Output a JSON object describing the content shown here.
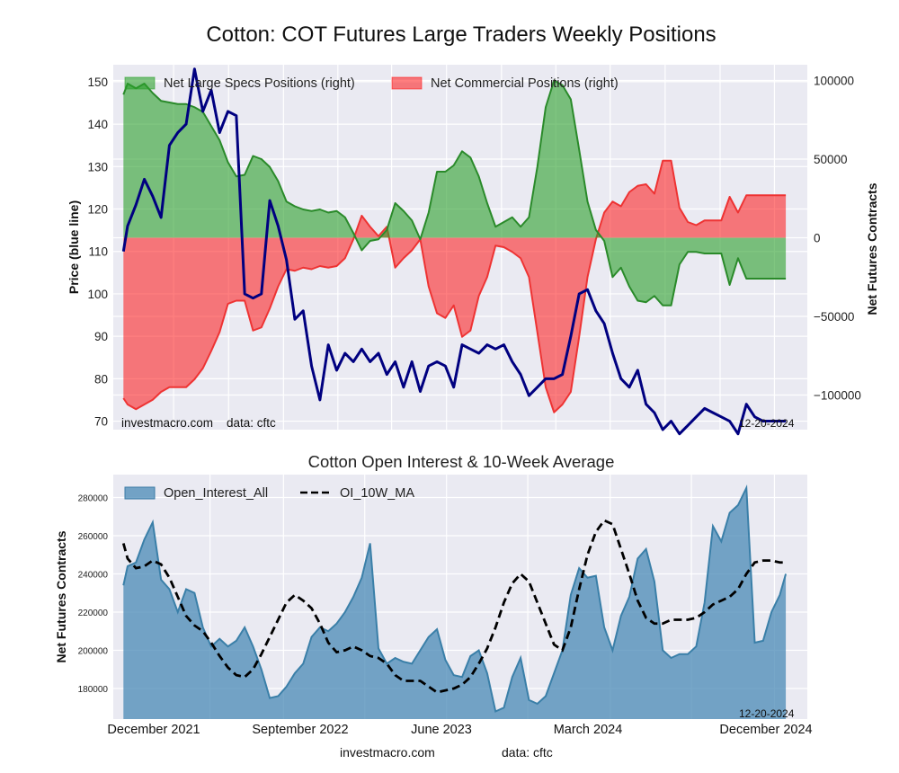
{
  "figure": {
    "title": "Cotton: COT Futures Large Traders Weekly Positions",
    "footer_left": "investmacro.com",
    "footer_right": "data: cftc"
  },
  "chart_data": [
    {
      "type": "area",
      "id": "positions",
      "title": "Cotton: COT Futures Large Traders Weekly Positions",
      "ylabel": "Price (blue line)",
      "ylabel_right": "Net Futures Contracts",
      "ylim": [
        68,
        154
      ],
      "ylim_right": [
        -122000,
        110000
      ],
      "yticks": [
        70,
        80,
        90,
        100,
        110,
        120,
        130,
        140,
        150
      ],
      "yticks_right": [
        -100000,
        -50000,
        0,
        50000,
        100000
      ],
      "yticks_right_labels": [
        "−100000",
        "−50000",
        "0",
        "50000",
        "100000"
      ],
      "grid": true,
      "legend_position": "top-left",
      "watermark": "investmacro.com",
      "source_note": "data: cftc",
      "date_label": "12-20-2024",
      "x_range": [
        "2021-11-20",
        "2025-01-25"
      ],
      "x": [
        "2021-12-07",
        "2021-12-14",
        "2021-12-28",
        "2022-01-11",
        "2022-01-25",
        "2022-02-08",
        "2022-02-22",
        "2022-03-08",
        "2022-03-22",
        "2022-04-05",
        "2022-04-19",
        "2022-05-03",
        "2022-05-17",
        "2022-05-31",
        "2022-06-14",
        "2022-06-28",
        "2022-07-12",
        "2022-07-26",
        "2022-08-09",
        "2022-08-23",
        "2022-09-06",
        "2022-09-20",
        "2022-10-04",
        "2022-10-18",
        "2022-11-01",
        "2022-11-15",
        "2022-11-29",
        "2022-12-13",
        "2022-12-27",
        "2023-01-10",
        "2023-01-24",
        "2023-02-07",
        "2023-02-21",
        "2023-03-07",
        "2023-03-21",
        "2023-04-04",
        "2023-04-18",
        "2023-05-02",
        "2023-05-16",
        "2023-05-30",
        "2023-06-13",
        "2023-06-27",
        "2023-07-11",
        "2023-07-25",
        "2023-08-08",
        "2023-08-22",
        "2023-09-05",
        "2023-09-19",
        "2023-10-03",
        "2023-10-17",
        "2023-10-31",
        "2023-11-14",
        "2023-11-28",
        "2023-12-12",
        "2023-12-26",
        "2024-01-09",
        "2024-01-23",
        "2024-02-06",
        "2024-02-20",
        "2024-03-05",
        "2024-03-19",
        "2024-04-02",
        "2024-04-16",
        "2024-04-30",
        "2024-05-14",
        "2024-05-28",
        "2024-06-11",
        "2024-06-25",
        "2024-07-09",
        "2024-07-23",
        "2024-08-06",
        "2024-08-20",
        "2024-09-03",
        "2024-09-17",
        "2024-10-01",
        "2024-10-15",
        "2024-10-29",
        "2024-11-12",
        "2024-11-26",
        "2024-12-10",
        "2024-12-20"
      ],
      "series": [
        {
          "name": "Net Large Specs Positions (right)",
          "kind": "area",
          "axis": "right",
          "color": "#2ca02c",
          "values": [
            91000,
            98000,
            95000,
            98000,
            92000,
            87000,
            86000,
            85000,
            85000,
            83000,
            80000,
            71000,
            62000,
            48000,
            39000,
            40000,
            52000,
            50000,
            45000,
            36000,
            23000,
            20000,
            18000,
            17000,
            18000,
            16000,
            17000,
            13000,
            3000,
            -8000,
            -2000,
            -1000,
            5000,
            22000,
            17000,
            11000,
            -1000,
            16000,
            42000,
            42000,
            46000,
            55000,
            51000,
            39000,
            22000,
            7000,
            10000,
            13000,
            7000,
            13000,
            45000,
            83000,
            100000,
            97000,
            88000,
            56000,
            23000,
            5000,
            -2000,
            -25000,
            -19000,
            -31000,
            -40000,
            -41000,
            -37000,
            -43000,
            -43000,
            -17000,
            -9000,
            -9000,
            -10000,
            -10000,
            -10000,
            -30000,
            -13000,
            -26000,
            -26000,
            -26000,
            -26000,
            -26000,
            -26000
          ]
        },
        {
          "name": "Net Commercial Positions (right)",
          "kind": "area",
          "axis": "right",
          "color": "#ff0000",
          "values": [
            -102000,
            -106000,
            -109000,
            -106000,
            -103000,
            -98000,
            -95000,
            -95000,
            -95000,
            -90000,
            -83000,
            -72000,
            -60000,
            -42000,
            -40000,
            -40000,
            -59000,
            -57000,
            -45000,
            -31000,
            -20000,
            -21000,
            -19000,
            -20000,
            -18000,
            -19000,
            -18000,
            -13000,
            -1000,
            14000,
            7000,
            1000,
            7000,
            -19000,
            -13000,
            -8000,
            -1000,
            -31000,
            -48000,
            -51000,
            -43000,
            -63000,
            -59000,
            -37000,
            -25000,
            -5000,
            -6000,
            -9000,
            -13000,
            -25000,
            -60000,
            -95000,
            -111000,
            -106000,
            -98000,
            -63000,
            -25000,
            -1000,
            16000,
            23000,
            20000,
            29000,
            33000,
            34000,
            28000,
            49000,
            49000,
            19000,
            10000,
            8000,
            11000,
            11000,
            11000,
            26000,
            16000,
            27000,
            27000,
            27000,
            27000,
            27000,
            27000
          ]
        },
        {
          "name": "Price",
          "kind": "line",
          "axis": "left",
          "color": "#000080",
          "values": [
            110,
            116,
            121,
            127,
            123,
            118,
            135,
            138,
            140,
            153,
            143,
            148,
            138,
            143,
            142,
            100,
            99,
            100,
            122,
            116,
            108,
            94,
            96,
            83,
            75,
            88,
            82,
            86,
            84,
            87,
            84,
            86,
            81,
            84,
            78,
            84,
            77,
            83,
            84,
            83,
            78,
            88,
            87,
            86,
            88,
            87,
            88,
            84,
            81,
            76,
            78,
            80,
            80,
            81,
            90,
            100,
            101,
            96,
            93,
            86,
            80,
            78,
            82,
            74,
            72,
            68,
            70,
            67,
            69,
            71,
            73,
            72,
            71,
            70,
            67,
            74,
            71,
            70,
            70,
            70,
            70
          ]
        }
      ]
    },
    {
      "type": "area",
      "id": "open-interest",
      "title": "Cotton Open Interest & 10-Week Average",
      "ylabel": "Net Futures Contracts",
      "ylim": [
        164000,
        292000
      ],
      "yticks": [
        180000,
        200000,
        220000,
        240000,
        260000,
        280000
      ],
      "xticks": [
        "December 2021",
        "September 2022",
        "June 2023",
        "March 2024",
        "December 2024"
      ],
      "grid": true,
      "legend_position": "top-left",
      "date_label": "12-20-2024",
      "series": [
        {
          "name": "Open_Interest_All",
          "kind": "area",
          "color": "#4a8ab5",
          "values": [
            234000,
            244000,
            246000,
            258000,
            267000,
            237000,
            232000,
            220000,
            232000,
            230000,
            212000,
            202000,
            206000,
            202000,
            205000,
            212000,
            202000,
            190000,
            175000,
            176000,
            181000,
            188000,
            193000,
            207000,
            212000,
            210000,
            214000,
            220000,
            228000,
            238000,
            256000,
            201000,
            193000,
            196000,
            194000,
            193000,
            200000,
            207000,
            211000,
            195000,
            187000,
            186000,
            197000,
            200000,
            188000,
            168000,
            170000,
            186000,
            196000,
            174000,
            172000,
            176000,
            188000,
            200000,
            229000,
            243000,
            238000,
            239000,
            212000,
            200000,
            218000,
            228000,
            248000,
            253000,
            236000,
            200000,
            196000,
            198000,
            198000,
            202000,
            225000,
            265000,
            257000,
            272000,
            276000,
            285000,
            204000,
            205000,
            220000,
            229000,
            240000
          ]
        },
        {
          "name": "OI_10W_MA",
          "kind": "line-dashed",
          "color": "#000000",
          "values": [
            256000,
            248000,
            243000,
            244000,
            247000,
            245000,
            238000,
            228000,
            218000,
            213000,
            210000,
            204000,
            197000,
            191000,
            187000,
            186000,
            190000,
            198000,
            207000,
            216000,
            225000,
            229000,
            226000,
            222000,
            214000,
            204000,
            199000,
            200000,
            202000,
            200000,
            197000,
            196000,
            193000,
            187000,
            184000,
            184000,
            184000,
            181000,
            178000,
            179000,
            180000,
            182000,
            186000,
            193000,
            201000,
            212000,
            225000,
            235000,
            240000,
            236000,
            225000,
            214000,
            203000,
            200000,
            212000,
            232000,
            250000,
            262000,
            268000,
            266000,
            253000,
            240000,
            226000,
            217000,
            214000,
            214000,
            216000,
            216000,
            216000,
            217000,
            220000,
            224000,
            226000,
            228000,
            232000,
            240000,
            246000,
            247000,
            247000,
            246000,
            246000
          ]
        }
      ]
    }
  ]
}
